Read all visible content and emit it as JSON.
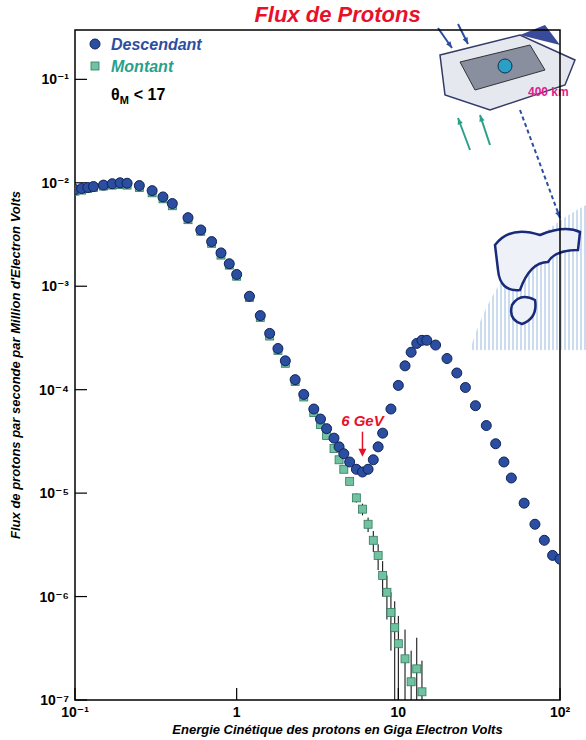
{
  "chart_data": {
    "type": "scatter",
    "title": "Flux de Protons",
    "x_label": "Energie Cinétique des protons en Giga Electron Volts",
    "y_label": "Flux de protons par seconde par Million d'Electron Volts",
    "log": true,
    "legend": "top-left",
    "legend_note": {
      "symbol": "θ",
      "subscript": "M",
      "text": "< 17"
    },
    "xlim": [
      0.1,
      100
    ],
    "ylim": [
      1e-07,
      0.3
    ],
    "xticks": [
      {
        "value": 0.1,
        "label": "10⁻¹"
      },
      1,
      10,
      {
        "value": 100,
        "label": "10²"
      }
    ],
    "yticks": [
      {
        "value": 1e-07,
        "label": "10⁻⁷"
      },
      {
        "value": 1e-06,
        "label": "10⁻⁶"
      },
      {
        "value": 1e-05,
        "label": "10⁻⁵"
      },
      {
        "value": 0.0001,
        "label": "10⁻⁴"
      },
      {
        "value": 0.001,
        "label": "10⁻³"
      },
      {
        "value": 0.01,
        "label": "10⁻²"
      },
      {
        "value": 0.1,
        "label": "10⁻¹"
      }
    ],
    "annotations": [
      {
        "text": "6 GeV",
        "x": 6,
        "y": 2.2e-05
      },
      {
        "text": "400 km"
      }
    ],
    "series": [
      {
        "name": "Descendant",
        "color": "#2b4ea0",
        "marker": "circle",
        "x": [
          0.1,
          0.11,
          0.12,
          0.13,
          0.15,
          0.17,
          0.19,
          0.21,
          0.25,
          0.3,
          0.35,
          0.4,
          0.5,
          0.6,
          0.7,
          0.8,
          0.9,
          1,
          1.2,
          1.4,
          1.6,
          1.8,
          2,
          2.3,
          2.6,
          3,
          3.3,
          3.6,
          4,
          4.3,
          4.6,
          5,
          5.5,
          6,
          6.5,
          7,
          7.5,
          8,
          9,
          10,
          11,
          12,
          13,
          14,
          15,
          17,
          20,
          23,
          26,
          30,
          35,
          40,
          45,
          50,
          60,
          70,
          80,
          90,
          100
        ],
        "values": [
          0.0086,
          0.0088,
          0.009,
          0.0092,
          0.0095,
          0.0098,
          0.01,
          0.0099,
          0.0094,
          0.0084,
          0.0073,
          0.0063,
          0.0046,
          0.0035,
          0.0027,
          0.0021,
          0.00165,
          0.0013,
          0.0008,
          0.00052,
          0.00035,
          0.00025,
          0.00019,
          0.000125,
          9e-05,
          6.5e-05,
          5.2e-05,
          4.2e-05,
          3.4e-05,
          2.8e-05,
          2.4e-05,
          2e-05,
          1.7e-05,
          1.6e-05,
          1.7e-05,
          2.1e-05,
          2.8e-05,
          3.8e-05,
          6.5e-05,
          0.00011,
          0.00017,
          0.00023,
          0.00028,
          0.0003,
          0.0003,
          0.00027,
          0.0002,
          0.000145,
          0.000105,
          7e-05,
          4.5e-05,
          3e-05,
          2e-05,
          1.4e-05,
          8e-06,
          5e-06,
          3.5e-06,
          2.5e-06,
          2.3e-06
        ]
      },
      {
        "name": "Montant",
        "color": "#72c2a2",
        "marker": "square",
        "x": [
          0.1,
          0.11,
          0.12,
          0.13,
          0.15,
          0.17,
          0.19,
          0.21,
          0.25,
          0.3,
          0.35,
          0.4,
          0.5,
          0.6,
          0.7,
          0.8,
          0.9,
          1,
          1.2,
          1.4,
          1.6,
          1.8,
          2,
          2.3,
          2.6,
          3,
          3.3,
          3.6,
          4,
          4.3,
          4.6,
          5,
          5.5,
          6,
          6.5,
          7,
          7.5,
          8,
          8.5,
          9,
          9.5,
          10,
          11,
          12,
          13,
          14
        ],
        "values": [
          0.0083,
          0.0085,
          0.0088,
          0.009,
          0.0093,
          0.0095,
          0.0096,
          0.0095,
          0.009,
          0.008,
          0.007,
          0.006,
          0.0044,
          0.0034,
          0.0026,
          0.002,
          0.0016,
          0.00125,
          0.00078,
          0.0005,
          0.00033,
          0.00024,
          0.00018,
          0.00012,
          8.5e-05,
          6e-05,
          4.6e-05,
          3.6e-05,
          2.7e-05,
          2.1e-05,
          1.7e-05,
          1.3e-05,
          9e-06,
          7e-06,
          5e-06,
          3.5e-06,
          2.5e-06,
          1.6e-06,
          1.1e-06,
          7e-07,
          5e-07,
          3.5e-07,
          2.5e-07,
          1.5e-07,
          2e-07,
          1.2e-07
        ],
        "errors": [
          null,
          null,
          null,
          null,
          null,
          null,
          null,
          null,
          null,
          null,
          null,
          null,
          null,
          null,
          null,
          null,
          null,
          null,
          null,
          null,
          null,
          null,
          null,
          null,
          null,
          null,
          null,
          null,
          null,
          null,
          1e-06,
          1e-06,
          9e-07,
          9e-07,
          8e-07,
          8e-07,
          7e-07,
          6e-07,
          5e-07,
          4e-07,
          4e-07,
          3e-07,
          2.3e-07,
          1.5e-07,
          2e-07,
          1.2e-07
        ]
      }
    ]
  }
}
